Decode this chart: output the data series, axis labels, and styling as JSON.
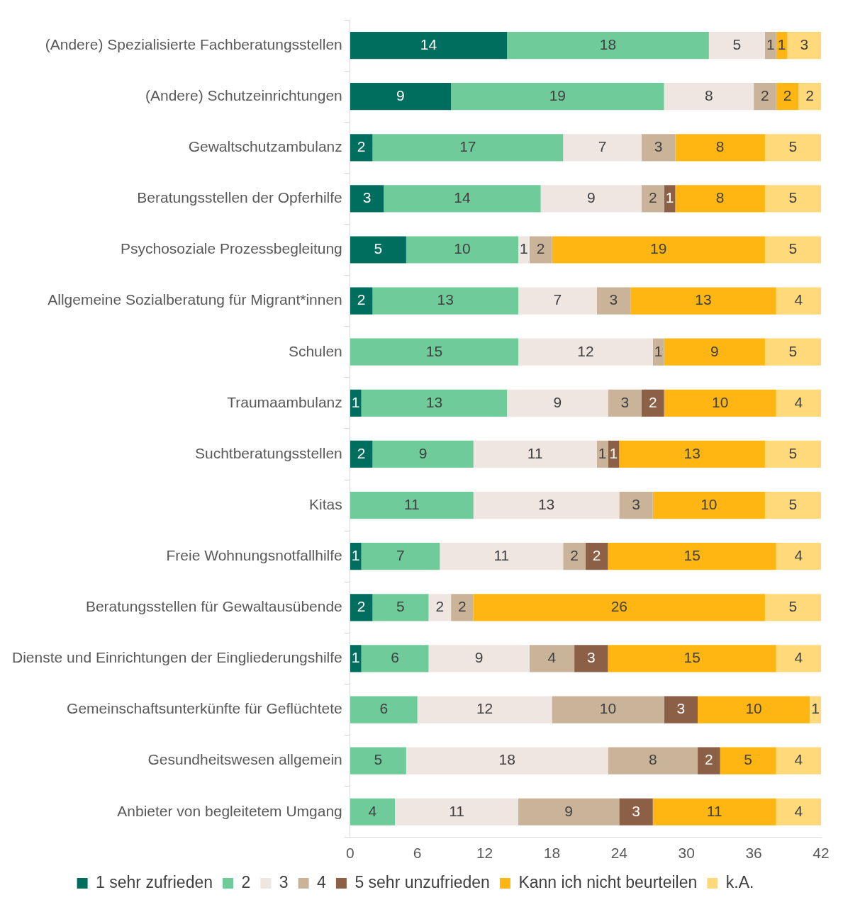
{
  "chart_data": {
    "type": "bar",
    "orientation": "horizontal",
    "stacked": true,
    "data_labels": true,
    "legend": "bottom",
    "grid": false,
    "categories": [
      "(Andere) Spezialisierte Fachberatungsstellen",
      "(Andere) Schutzeinrichtungen",
      "Gewaltschutzambulanz",
      "Beratungsstellen der Opferhilfe",
      "Psychosoziale Prozessbegleitung",
      "Allgemeine Sozialberatung für Migrant*innen",
      "Schulen",
      "Traumaambulanz",
      "Suchtberatungsstellen",
      "Kitas",
      "Freie Wohnungsnotfallhilfe",
      "Beratungsstellen für Gewaltausübende",
      "Dienste und Einrichtungen der Eingliederungshilfe",
      "Gemeinschaftsunterkünfte für Geflüchtete",
      "Gesundheitswesen allgemein",
      "Anbieter von begleitetem Umgang"
    ],
    "xlim": [
      0,
      42
    ],
    "xticks": [
      0,
      6,
      12,
      18,
      24,
      30,
      36,
      42
    ],
    "series": [
      {
        "name": "1 sehr zufrieden",
        "color": "#006e5f",
        "values": [
          14,
          9,
          2,
          3,
          5,
          2,
          null,
          1,
          2,
          null,
          1,
          2,
          1,
          null,
          null,
          null
        ]
      },
      {
        "name": "2",
        "color": "#6fcb9a",
        "values": [
          18,
          19,
          17,
          14,
          10,
          13,
          15,
          13,
          9,
          11,
          7,
          5,
          6,
          6,
          5,
          4
        ]
      },
      {
        "name": "3",
        "color": "#efe5e1",
        "values": [
          5,
          8,
          7,
          9,
          1,
          7,
          12,
          9,
          11,
          13,
          11,
          2,
          9,
          12,
          18,
          11
        ]
      },
      {
        "name": "4",
        "color": "#c9b49a",
        "values": [
          1,
          2,
          3,
          2,
          2,
          3,
          1,
          3,
          1,
          3,
          2,
          2,
          4,
          10,
          8,
          9
        ]
      },
      {
        "name": "5 sehr unzufrieden",
        "color": "#8c6046",
        "values": [
          null,
          null,
          null,
          1,
          null,
          null,
          null,
          2,
          1,
          null,
          2,
          null,
          3,
          3,
          2,
          3
        ]
      },
      {
        "name": "Kann ich nicht beurteilen",
        "color": "#ffb612",
        "values": [
          1,
          2,
          8,
          8,
          19,
          13,
          9,
          10,
          13,
          10,
          15,
          26,
          15,
          10,
          5,
          11
        ]
      },
      {
        "name": "k.A.",
        "color": "#ffd97a",
        "values": [
          3,
          2,
          5,
          5,
          5,
          4,
          5,
          4,
          5,
          5,
          4,
          5,
          4,
          1,
          4,
          4
        ]
      }
    ]
  }
}
